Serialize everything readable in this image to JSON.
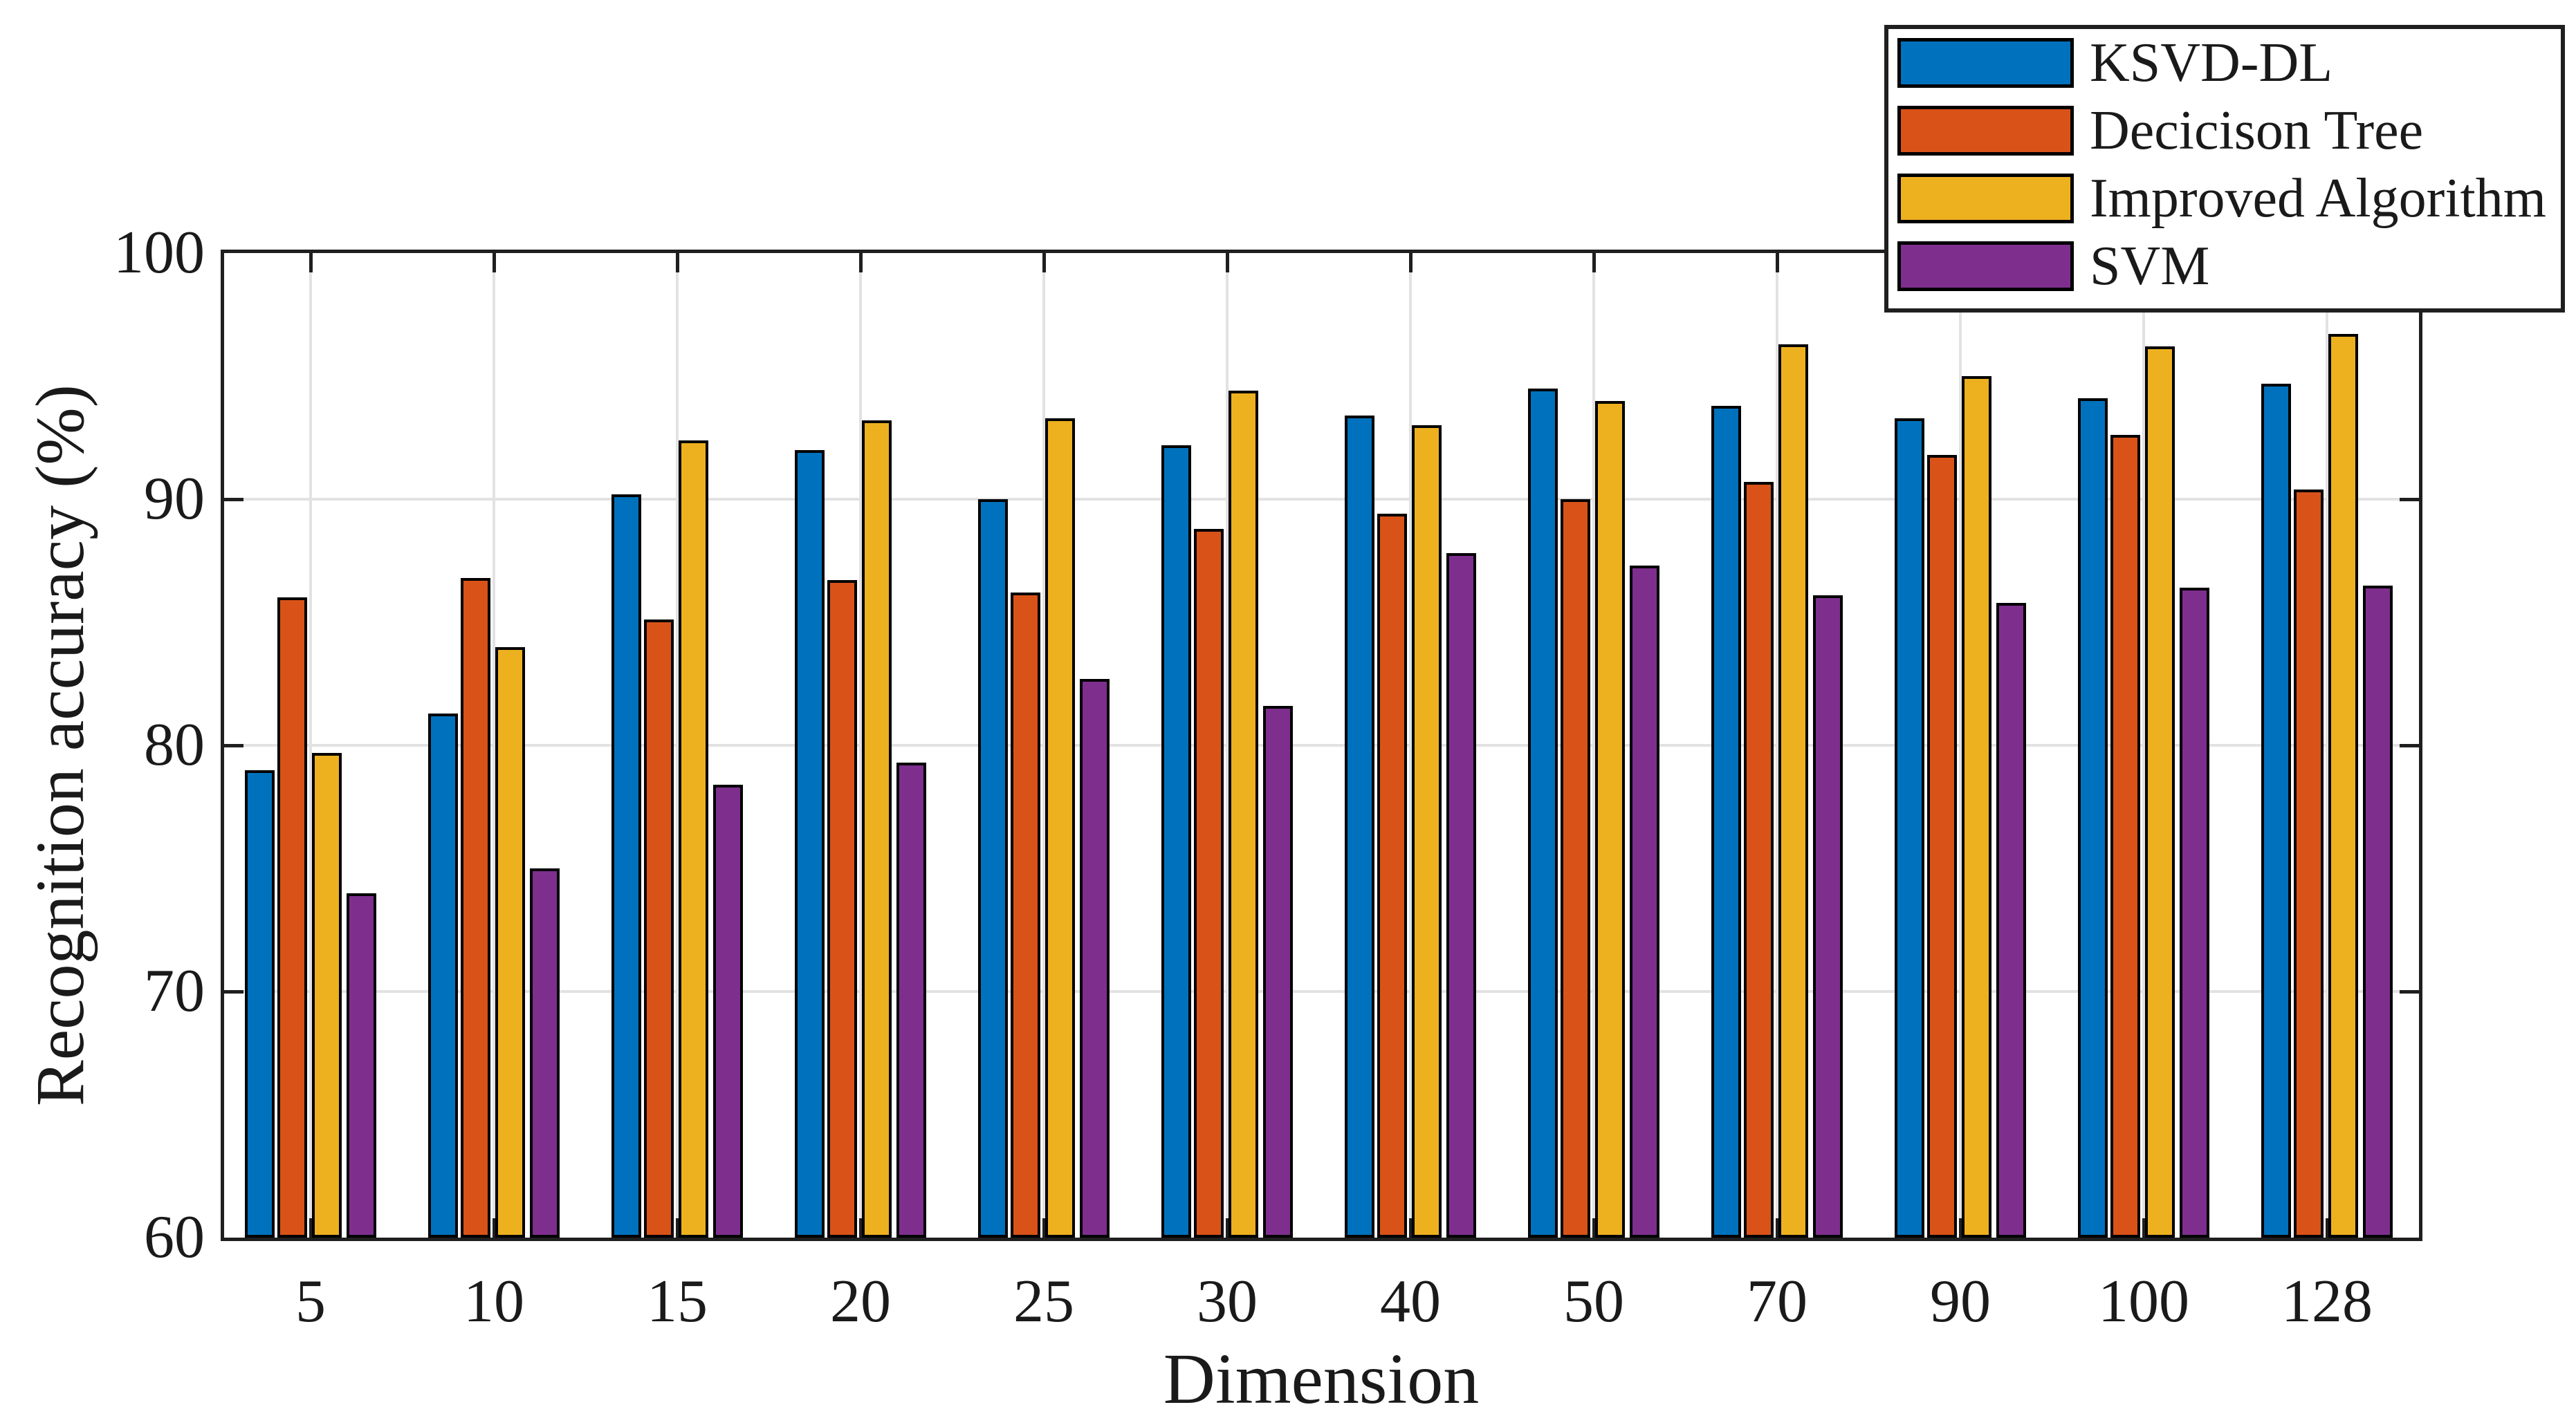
{
  "figure": {
    "background": "#ffffff",
    "axis_color": "#1f1f1f",
    "grid_color": "#e2e2e2",
    "bar_edge_color": "#000000"
  },
  "chart_data": {
    "type": "bar",
    "title": "",
    "xlabel": "Dimension",
    "ylabel": "Recognition accuracy (%)",
    "categories": [
      "5",
      "10",
      "15",
      "20",
      "25",
      "30",
      "40",
      "50",
      "70",
      "90",
      "100",
      "128"
    ],
    "ylim": [
      60,
      100
    ],
    "y_ticks": [
      60,
      70,
      80,
      90,
      100
    ],
    "grid": true,
    "legend_position": "top-right",
    "series": [
      {
        "name": "KSVD-DL",
        "color": "#0072BD",
        "values": [
          79.0,
          81.3,
          90.2,
          92.0,
          90.0,
          92.2,
          93.4,
          94.5,
          93.8,
          93.3,
          94.1,
          94.7
        ]
      },
      {
        "name": "Decicison Tree",
        "color": "#D95319",
        "values": [
          86.0,
          86.8,
          85.1,
          86.7,
          86.2,
          88.8,
          89.4,
          90.0,
          90.7,
          91.8,
          92.6,
          90.4
        ]
      },
      {
        "name": "Improved Algorithm",
        "color": "#EDB120",
        "values": [
          79.7,
          84.0,
          92.4,
          93.2,
          93.3,
          94.4,
          93.0,
          94.0,
          96.3,
          95.0,
          96.2,
          96.7
        ]
      },
      {
        "name": "SVM",
        "color": "#7E2F8E",
        "values": [
          74.0,
          75.0,
          78.4,
          79.3,
          82.7,
          81.6,
          87.8,
          87.3,
          86.1,
          85.8,
          86.4,
          86.5
        ]
      }
    ]
  }
}
